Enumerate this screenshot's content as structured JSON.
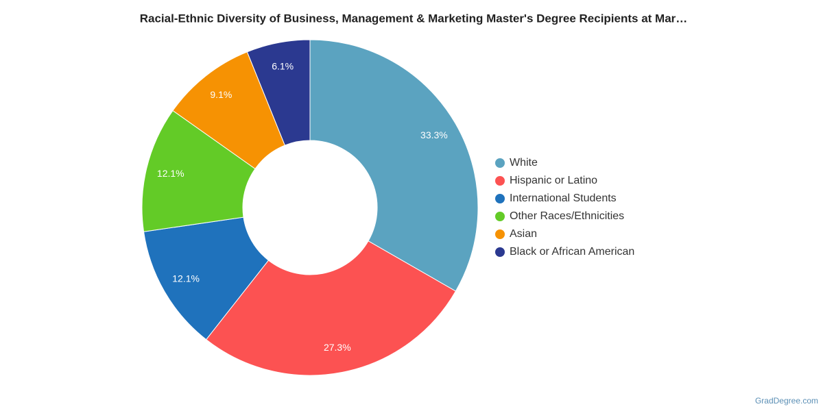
{
  "chart_data": {
    "type": "donut",
    "title": "Racial-Ethnic Diversity of Business, Management & Marketing Master's Degree Recipients at Mar…",
    "categories": [
      "White",
      "Hispanic or Latino",
      "International Students",
      "Other Races/Ethnicities",
      "Asian",
      "Black or African American"
    ],
    "values": [
      33.3,
      27.3,
      12.1,
      12.1,
      9.1,
      6.1
    ],
    "value_labels": [
      "33.3%",
      "27.3%",
      "12.1%",
      "12.1%",
      "9.1%",
      "6.1%"
    ],
    "colors": [
      "#5ba3c0",
      "#fc5252",
      "#1f72bc",
      "#63cb27",
      "#f69203",
      "#2b3990"
    ],
    "legend": "right",
    "credit": "GradDegree.com"
  }
}
